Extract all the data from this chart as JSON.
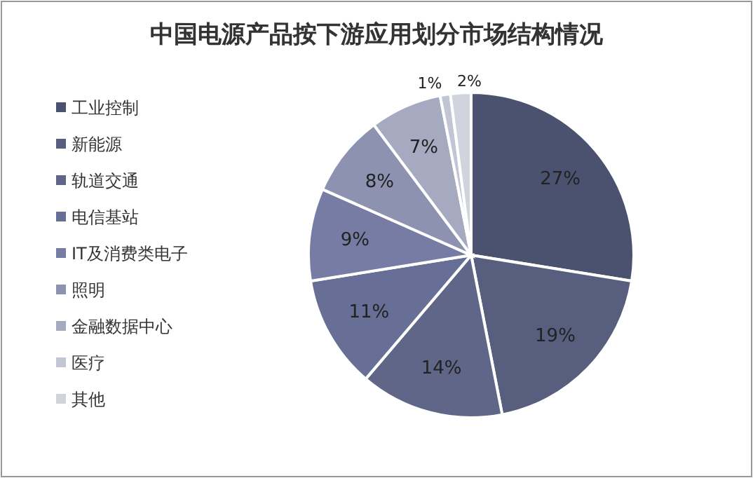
{
  "chart_data": {
    "type": "pie",
    "title": "中国电源产品按下游应用划分市场结构情况",
    "categories": [
      "工业控制",
      "新能源",
      "轨道交通",
      "电信基站",
      "IT及消费类电子",
      "照明",
      "金融数据中心",
      "医疗",
      "其他"
    ],
    "values": [
      27,
      19,
      14,
      11,
      9,
      8,
      7,
      1,
      2
    ],
    "colors": [
      "#4b5270",
      "#575e7e",
      "#5f6688",
      "#686f96",
      "#767ca4",
      "#8d92b0",
      "#a6aac0",
      "#c2c5d3",
      "#d2d4dd"
    ],
    "value_labels": [
      "27%",
      "19%",
      "14%",
      "11%",
      "9%",
      "8%",
      "7%",
      "1%",
      "2%"
    ],
    "legend": "left"
  }
}
